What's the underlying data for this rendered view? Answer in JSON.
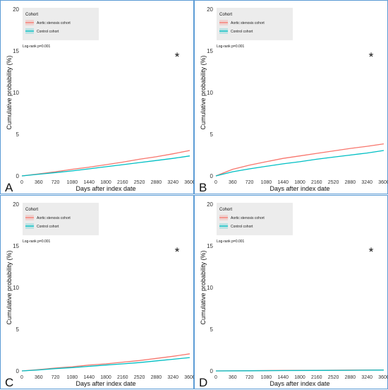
{
  "legend_title": "Cohort",
  "series_names": [
    "Aortic stenosis cohort",
    "Control cohort"
  ],
  "colors": {
    "aortic": "#f8766d",
    "control": "#00bfc4",
    "panel_border": "#5b9bd5"
  },
  "xlabel": "Days after index date",
  "ylabel": "Cumulative probability (%)",
  "x_ticks": [
    "0",
    "360",
    "720",
    "1080",
    "1440",
    "1800",
    "2160",
    "2520",
    "2880",
    "3240",
    "3600"
  ],
  "y_ticks": [
    "0",
    "5",
    "10",
    "15",
    "20"
  ],
  "chart_data": [
    {
      "type": "line",
      "panel_letter": "A",
      "annotation": "Log-rank p=0.001",
      "significance_marker": "*",
      "xlim": [
        0,
        3600
      ],
      "ylim": [
        0,
        20
      ],
      "series": [
        {
          "name": "Aortic stenosis cohort",
          "x": [
            0,
            360,
            720,
            1080,
            1440,
            1800,
            2160,
            2520,
            2880,
            3240,
            3600
          ],
          "y": [
            0,
            0.25,
            0.5,
            0.8,
            1.05,
            1.35,
            1.65,
            2.0,
            2.3,
            2.65,
            3.05
          ]
        },
        {
          "name": "Control cohort",
          "x": [
            0,
            360,
            720,
            1080,
            1440,
            1800,
            2160,
            2520,
            2880,
            3240,
            3600
          ],
          "y": [
            0,
            0.2,
            0.4,
            0.6,
            0.85,
            1.1,
            1.35,
            1.6,
            1.85,
            2.1,
            2.4
          ]
        }
      ]
    },
    {
      "type": "line",
      "panel_letter": "B",
      "annotation": "Log-rank p=0.001",
      "significance_marker": "*",
      "xlim": [
        0,
        3600
      ],
      "ylim": [
        0,
        20
      ],
      "series": [
        {
          "name": "Aortic stenosis cohort",
          "x": [
            0,
            360,
            720,
            1080,
            1440,
            1800,
            2160,
            2520,
            2880,
            3240,
            3600
          ],
          "y": [
            0,
            0.8,
            1.3,
            1.7,
            2.1,
            2.4,
            2.7,
            3.0,
            3.3,
            3.55,
            3.85
          ]
        },
        {
          "name": "Control cohort",
          "x": [
            0,
            360,
            720,
            1080,
            1440,
            1800,
            2160,
            2520,
            2880,
            3240,
            3600
          ],
          "y": [
            0,
            0.5,
            0.85,
            1.15,
            1.45,
            1.7,
            2.0,
            2.25,
            2.5,
            2.75,
            3.05
          ]
        }
      ]
    },
    {
      "type": "line",
      "panel_letter": "C",
      "annotation": "Log-rank p=0.001",
      "significance_marker": "*",
      "xlim": [
        0,
        3600
      ],
      "ylim": [
        0,
        20
      ],
      "series": [
        {
          "name": "Aortic stenosis cohort",
          "x": [
            0,
            360,
            720,
            1080,
            1440,
            1800,
            2160,
            2520,
            2880,
            3240,
            3600
          ],
          "y": [
            0,
            0.15,
            0.35,
            0.5,
            0.7,
            0.85,
            1.05,
            1.25,
            1.5,
            1.75,
            2.05
          ]
        },
        {
          "name": "Control cohort",
          "x": [
            0,
            360,
            720,
            1080,
            1440,
            1800,
            2160,
            2520,
            2880,
            3240,
            3600
          ],
          "y": [
            0,
            0.12,
            0.28,
            0.4,
            0.55,
            0.7,
            0.85,
            1.0,
            1.2,
            1.4,
            1.6
          ]
        }
      ]
    },
    {
      "type": "line",
      "panel_letter": "D",
      "annotation": "Log-rank p=0.001",
      "significance_marker": "*",
      "xlim": [
        0,
        3600
      ],
      "ylim": [
        0,
        20
      ],
      "series": [
        {
          "name": "Aortic stenosis cohort",
          "x": [
            0,
            720,
            1440,
            2160,
            2880,
            3600
          ],
          "y": [
            0,
            0.03,
            0.06,
            0.08,
            0.1,
            0.12
          ]
        },
        {
          "name": "Control cohort",
          "x": [
            0,
            720,
            1440,
            2160,
            2880,
            3600
          ],
          "y": [
            0,
            0.02,
            0.04,
            0.06,
            0.08,
            0.1
          ]
        }
      ]
    }
  ]
}
